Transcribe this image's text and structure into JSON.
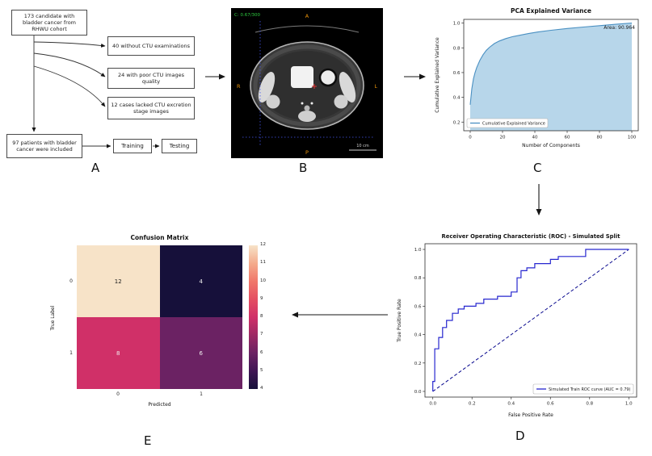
{
  "panel_labels": {
    "a": "A",
    "b": "B",
    "c": "C",
    "d": "D",
    "e": "E"
  },
  "flowchart": {
    "cohort": "173 candidate with bladder cancer from RHWU cohort",
    "exclusion_1": "40 without CTU examinations",
    "exclusion_2": "24 with poor CTU images quality",
    "exclusion_3": "12 cases lacked CTU excretion stage images",
    "included": "97 patients with bladder cancer were included",
    "training": "Training",
    "testing": "Testing"
  },
  "ct_scan": {
    "window_text": "C: 0.67/300",
    "marker_top": "A",
    "marker_left": "R",
    "marker_right": "L",
    "marker_bottom": "P",
    "scale_text": "10 cm",
    "marker_color": "#e8920a",
    "overlay_text_color": "#2ecc40",
    "crosshair_color": "#4455ee"
  },
  "chart_data": [
    {
      "id": "pca",
      "type": "area",
      "title": "PCA Explained Variance",
      "xlabel": "Number of Components",
      "ylabel": "Cumulative Explained Variance",
      "annotation": "Area: 90.964",
      "legend": "Cumulative Explained Variance",
      "legend_position": "lower-left",
      "xlim": [
        -4,
        104
      ],
      "ylim": [
        0.13,
        1.03
      ],
      "xticks": [
        "0",
        "20",
        "40",
        "60",
        "80",
        "100"
      ],
      "yticks": [
        "0.2",
        "0.4",
        "0.6",
        "0.8",
        "1.0"
      ],
      "line_color": "#4a90c2",
      "fill_color": "#b7d6ea",
      "x": [
        0,
        1,
        2,
        3,
        4,
        5,
        6,
        8,
        10,
        12,
        15,
        18,
        22,
        26,
        30,
        36,
        42,
        50,
        60,
        70,
        80,
        90,
        100
      ],
      "y": [
        0.34,
        0.47,
        0.55,
        0.6,
        0.64,
        0.67,
        0.7,
        0.745,
        0.78,
        0.805,
        0.835,
        0.855,
        0.875,
        0.89,
        0.9,
        0.915,
        0.928,
        0.942,
        0.956,
        0.968,
        0.979,
        0.99,
        1.0
      ]
    },
    {
      "id": "roc",
      "type": "line",
      "title": "Receiver Operating Characteristic (ROC) - Simulated Split",
      "xlabel": "False Positive Rate",
      "ylabel": "True Positive Rate",
      "xlim": [
        -0.04,
        1.04
      ],
      "ylim": [
        -0.04,
        1.04
      ],
      "xticks": [
        "0.0",
        "0.2",
        "0.4",
        "0.6",
        "0.8",
        "1.0"
      ],
      "yticks": [
        "0.0",
        "0.2",
        "0.4",
        "0.6",
        "0.8",
        "1.0"
      ],
      "legend_position": "lower-right",
      "curve": {
        "name": "Simulated Train ROC curve (AUC = 0.79)",
        "color": "#2727cf",
        "points": [
          [
            0,
            0
          ],
          [
            0,
            0.07
          ],
          [
            0.01,
            0.07
          ],
          [
            0.01,
            0.3
          ],
          [
            0.03,
            0.3
          ],
          [
            0.03,
            0.38
          ],
          [
            0.05,
            0.38
          ],
          [
            0.05,
            0.45
          ],
          [
            0.07,
            0.45
          ],
          [
            0.07,
            0.5
          ],
          [
            0.1,
            0.5
          ],
          [
            0.1,
            0.55
          ],
          [
            0.13,
            0.55
          ],
          [
            0.13,
            0.58
          ],
          [
            0.16,
            0.58
          ],
          [
            0.16,
            0.6
          ],
          [
            0.22,
            0.6
          ],
          [
            0.22,
            0.62
          ],
          [
            0.26,
            0.62
          ],
          [
            0.26,
            0.65
          ],
          [
            0.33,
            0.65
          ],
          [
            0.33,
            0.67
          ],
          [
            0.4,
            0.67
          ],
          [
            0.4,
            0.7
          ],
          [
            0.43,
            0.7
          ],
          [
            0.43,
            0.8
          ],
          [
            0.45,
            0.8
          ],
          [
            0.45,
            0.85
          ],
          [
            0.48,
            0.85
          ],
          [
            0.48,
            0.87
          ],
          [
            0.52,
            0.87
          ],
          [
            0.52,
            0.9
          ],
          [
            0.6,
            0.9
          ],
          [
            0.6,
            0.93
          ],
          [
            0.64,
            0.93
          ],
          [
            0.64,
            0.95
          ],
          [
            0.78,
            0.95
          ],
          [
            0.78,
            1.0
          ],
          [
            1.0,
            1.0
          ]
        ]
      },
      "diagonal": {
        "color": "#00008b",
        "points": [
          [
            0,
            0
          ],
          [
            1,
            1
          ]
        ]
      }
    },
    {
      "id": "confusion",
      "type": "heatmap",
      "title": "Confusion Matrix",
      "xlabel": "Predicted",
      "ylabel": "True Label",
      "xticklabels": [
        "0",
        "1"
      ],
      "yticklabels": [
        "0",
        "1"
      ],
      "values": [
        [
          12,
          4
        ],
        [
          8,
          6
        ]
      ],
      "cell_colors": [
        [
          "#f7e3c8",
          "#16103a"
        ],
        [
          "#d03068",
          "#6b2263"
        ]
      ],
      "cell_text_colors": [
        [
          "#1a1a1a",
          "#f0f0f0"
        ],
        [
          "#f0f0f0",
          "#f0f0f0"
        ]
      ],
      "colorbar": {
        "min": 4,
        "max": 12,
        "ticks": [
          4,
          5,
          6,
          7,
          8,
          9,
          10,
          11,
          12
        ],
        "gradient": [
          "#16103a",
          "#3f1554",
          "#6b2263",
          "#9d2964",
          "#d03068",
          "#e44f62",
          "#f0776a",
          "#f4ab8c",
          "#f7e3c8"
        ]
      }
    }
  ]
}
